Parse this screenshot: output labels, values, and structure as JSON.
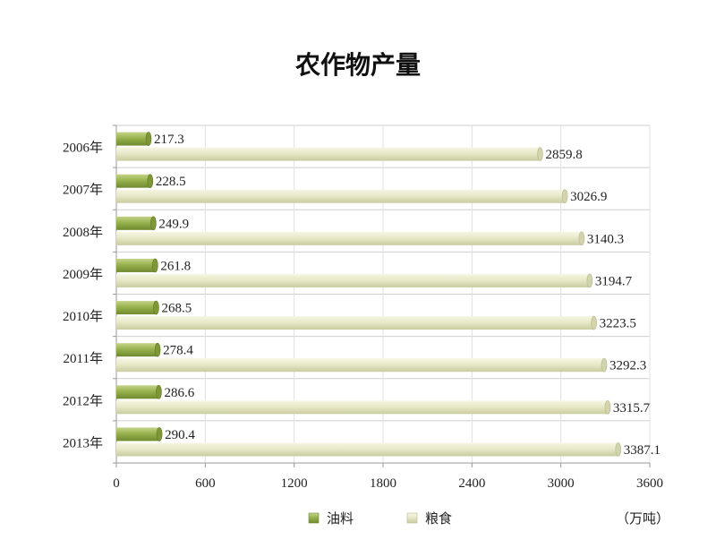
{
  "chart_data": {
    "type": "bar",
    "orientation": "horizontal",
    "title": "农作物产量",
    "categories": [
      "2006年",
      "2007年",
      "2008年",
      "2009年",
      "2010年",
      "2011年",
      "2012年",
      "2013年"
    ],
    "series": [
      {
        "name": "油料",
        "color": "#8ea84a",
        "values": [
          217.3,
          228.5,
          249.9,
          261.8,
          268.5,
          278.4,
          286.6,
          290.4
        ],
        "labels": [
          "217.3",
          "228.5",
          "249.9",
          "261.8",
          "268.5",
          "278.4",
          "286.6",
          "290.4"
        ]
      },
      {
        "name": "粮食",
        "color": "#e6e7c4",
        "values": [
          2859.8,
          3026.9,
          3140.3,
          3194.7,
          3223.5,
          3292.3,
          3315.7,
          3387.1
        ],
        "labels": [
          "2859.8",
          "3026.9",
          "3140.3",
          "3194.7",
          "3223.5",
          "3292.3",
          "3315.7",
          "3387.1"
        ]
      }
    ],
    "xlim": [
      0,
      3600
    ],
    "xticks": [
      "0",
      "600",
      "1200",
      "1800",
      "2400",
      "3000",
      "3600"
    ],
    "xtick_values": [
      0,
      600,
      1200,
      1800,
      2400,
      3000,
      3600
    ],
    "unit": "（万吨）",
    "grid": true,
    "legend_position": "bottom"
  }
}
